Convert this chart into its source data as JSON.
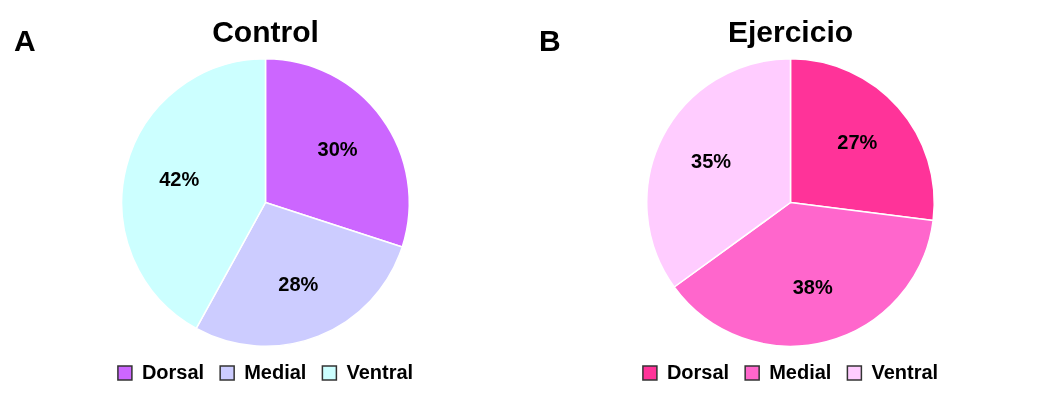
{
  "chart_data": [
    {
      "type": "pie",
      "title": "Control",
      "annotations": [
        "A"
      ],
      "categories": [
        "Dorsal",
        "Medial",
        "Ventral"
      ],
      "values": [
        30,
        28,
        42
      ],
      "value_labels": [
        "30%",
        "28%",
        "42%"
      ],
      "colors": [
        "#cc66ff",
        "#ccccff",
        "#ccffff"
      ],
      "legend": "bottom"
    },
    {
      "type": "pie",
      "title": "Ejercicio",
      "annotations": [
        "B"
      ],
      "categories": [
        "Dorsal",
        "Medial",
        "Ventral"
      ],
      "values": [
        27,
        38,
        35
      ],
      "value_labels": [
        "27%",
        "38%",
        "35%"
      ],
      "colors": [
        "#ff3399",
        "#ff66cc",
        "#ffccff"
      ],
      "legend": "bottom"
    }
  ]
}
